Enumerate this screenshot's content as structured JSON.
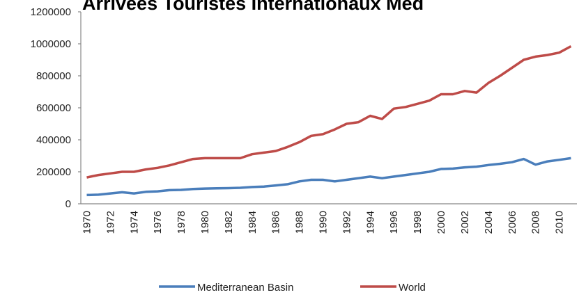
{
  "chart_data": {
    "type": "line",
    "title": "Arrivées Touristes Internationaux Med",
    "categories": [
      "1970",
      null,
      "1972",
      null,
      "1974",
      null,
      "1976",
      null,
      "1978",
      null,
      "1980",
      null,
      "1982",
      null,
      "1984",
      null,
      "1986",
      null,
      "1988",
      null,
      "1990",
      null,
      "1992",
      null,
      "1994",
      null,
      "1996",
      null,
      "1998",
      null,
      "2000",
      null,
      "2002",
      null,
      "2004",
      null,
      "2006",
      null,
      "2008",
      null,
      "2010",
      null
    ],
    "series": [
      {
        "name": "Mediterranean Basin",
        "color": "#4a7ebb",
        "values": [
          55000,
          57000,
          65000,
          72000,
          65000,
          75000,
          78000,
          85000,
          87000,
          92000,
          95000,
          97000,
          98000,
          100000,
          105000,
          108000,
          115000,
          122000,
          140000,
          150000,
          150000,
          140000,
          150000,
          160000,
          170000,
          160000,
          170000,
          180000,
          190000,
          200000,
          218000,
          220000,
          228000,
          232000,
          242000,
          250000,
          260000,
          280000,
          245000,
          265000,
          275000,
          285000
        ]
      },
      {
        "name": "World",
        "color": "#be4b48",
        "values": [
          165000,
          180000,
          190000,
          200000,
          200000,
          215000,
          225000,
          240000,
          260000,
          280000,
          285000,
          285000,
          285000,
          285000,
          310000,
          320000,
          330000,
          355000,
          385000,
          425000,
          435000,
          465000,
          500000,
          510000,
          550000,
          530000,
          595000,
          605000,
          625000,
          645000,
          685000,
          685000,
          705000,
          695000,
          755000,
          800000,
          850000,
          900000,
          920000,
          930000,
          945000,
          985000
        ]
      }
    ],
    "ylim": [
      0,
      1200000
    ],
    "yticks": [
      0,
      200000,
      400000,
      600000,
      800000,
      1000000,
      1200000
    ],
    "grid": false,
    "legend": "bottom"
  }
}
